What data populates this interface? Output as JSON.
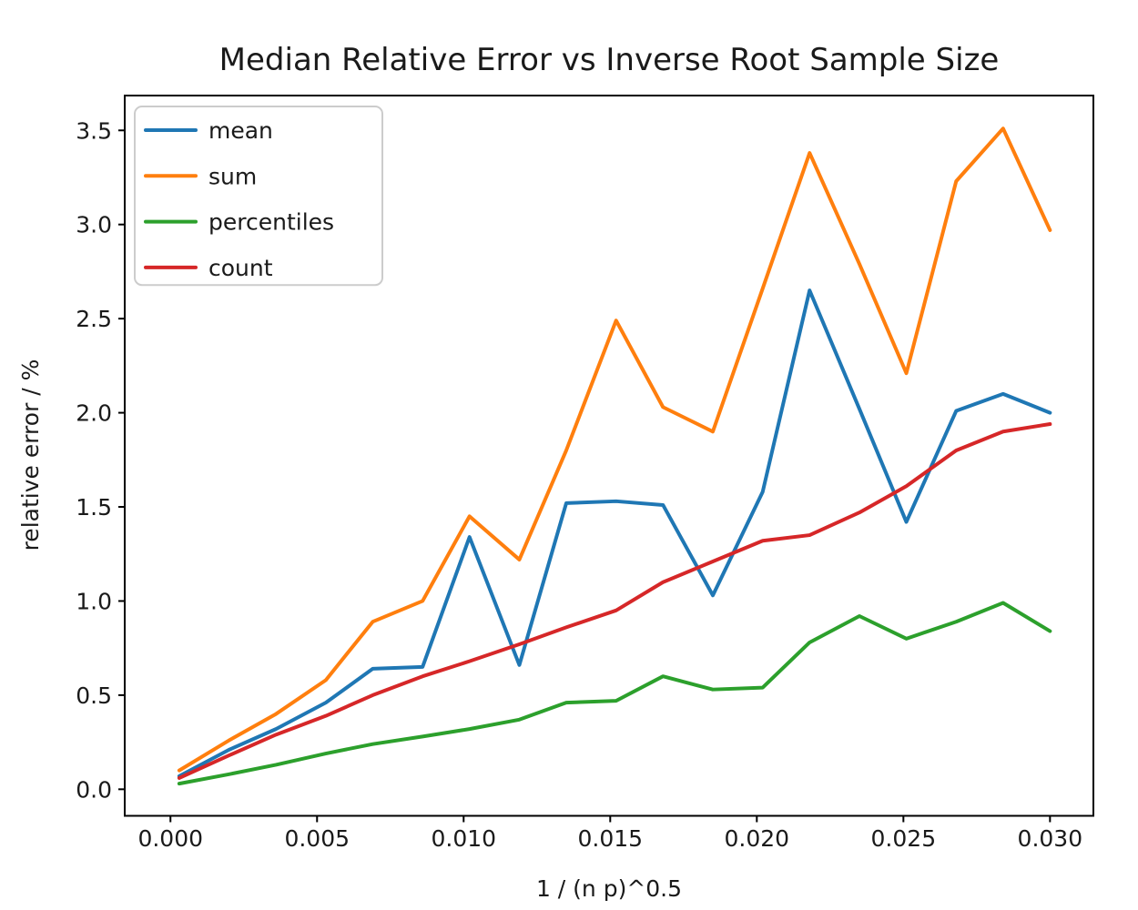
{
  "chart_data": {
    "type": "line",
    "title": "Median Relative Error vs Inverse Root Sample Size",
    "xlabel": "1 / (n p)^0.5",
    "ylabel": "relative error / %",
    "xlim": [
      -0.00156,
      0.03148
    ],
    "ylim": [
      -0.141,
      3.685
    ],
    "grid": false,
    "legend_position": "upper left",
    "xticks": [
      0.0,
      0.005,
      0.01,
      0.015,
      0.02,
      0.025,
      0.03
    ],
    "xtick_labels": [
      "0.000",
      "0.005",
      "0.010",
      "0.015",
      "0.020",
      "0.025",
      "0.030"
    ],
    "yticks": [
      0.0,
      0.5,
      1.0,
      1.5,
      2.0,
      2.5,
      3.0,
      3.5
    ],
    "ytick_labels": [
      "0.0",
      "0.5",
      "1.0",
      "1.5",
      "2.0",
      "2.5",
      "3.0",
      "3.5"
    ],
    "x": [
      0.0003,
      0.002,
      0.0036,
      0.0053,
      0.0069,
      0.0086,
      0.0102,
      0.0119,
      0.0135,
      0.0152,
      0.0168,
      0.0185,
      0.0202,
      0.0218,
      0.0235,
      0.0251,
      0.0268,
      0.0284,
      0.03
    ],
    "series": [
      {
        "name": "mean",
        "color": "#1f77b4",
        "values": [
          0.07,
          0.21,
          0.32,
          0.46,
          0.64,
          0.65,
          1.34,
          0.66,
          1.52,
          1.53,
          1.51,
          1.03,
          1.58,
          2.65,
          2.02,
          1.42,
          2.01,
          2.1,
          2.0
        ]
      },
      {
        "name": "sum",
        "color": "#ff7f0e",
        "values": [
          0.1,
          0.26,
          0.4,
          0.58,
          0.89,
          1.0,
          1.45,
          1.22,
          1.8,
          2.49,
          2.03,
          1.9,
          2.66,
          3.38,
          2.79,
          2.21,
          3.23,
          3.51,
          2.97
        ]
      },
      {
        "name": "percentiles",
        "color": "#2ca02c",
        "values": [
          0.03,
          0.08,
          0.13,
          0.19,
          0.24,
          0.28,
          0.32,
          0.37,
          0.46,
          0.47,
          0.6,
          0.53,
          0.54,
          0.78,
          0.92,
          0.8,
          0.89,
          0.99,
          0.84
        ]
      },
      {
        "name": "count",
        "color": "#d62728",
        "values": [
          0.06,
          0.18,
          0.29,
          0.39,
          0.5,
          0.6,
          0.68,
          0.77,
          0.86,
          0.95,
          1.1,
          1.21,
          1.32,
          1.35,
          1.47,
          1.61,
          1.8,
          1.9,
          1.94
        ]
      }
    ]
  }
}
